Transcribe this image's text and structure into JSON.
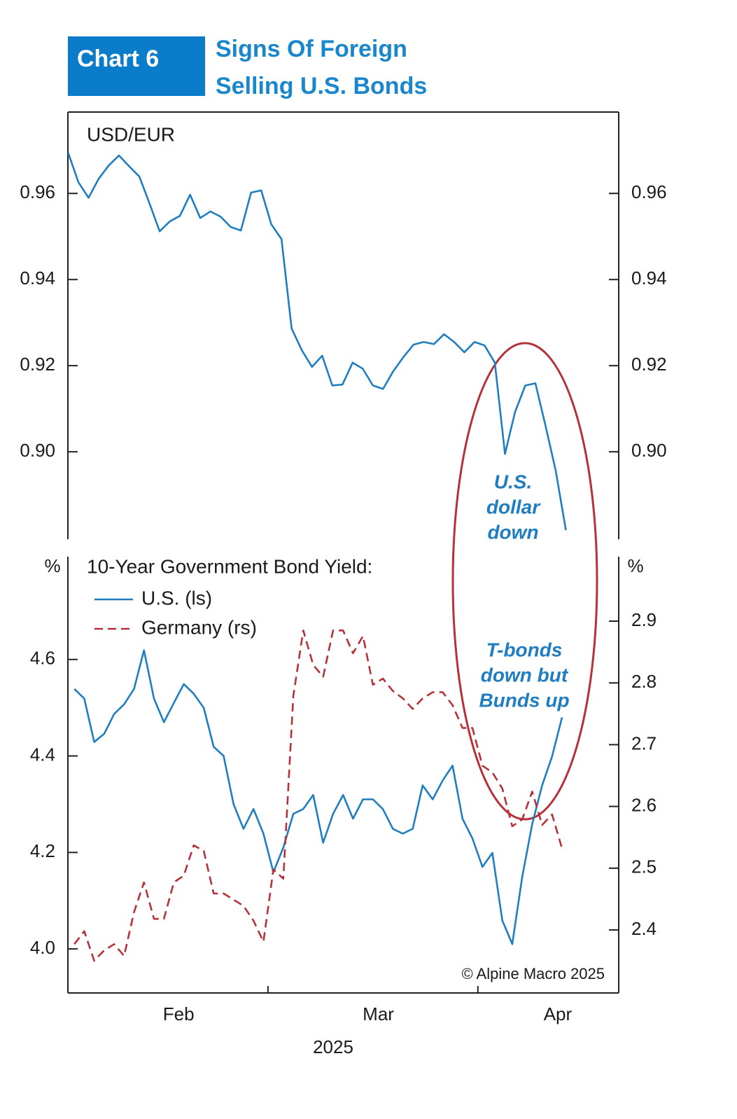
{
  "header": {
    "badge": "Chart 6",
    "title": [
      "Signs Of Foreign",
      "Selling U.S. Bonds"
    ]
  },
  "source": "© Alpine Macro 2025",
  "chart_data": [
    {
      "type": "line",
      "title": "USD/EUR",
      "color": "#1f7dc1",
      "xlim": [
        30.45,
        111.8
      ],
      "ylim": [
        0.8797,
        0.9789
      ],
      "yticks": [
        {
          "value": 0.9,
          "label": "0.90"
        },
        0.92,
        0.94,
        0.96
      ],
      "x": [
        30.5,
        32,
        33.5,
        35,
        36.5,
        38,
        39.5,
        41,
        42.5,
        44,
        45.5,
        47,
        48.5,
        50,
        51.5,
        53,
        54.5,
        56,
        57.5,
        59,
        60.5,
        62,
        63.5,
        65,
        66.5,
        68,
        69.5,
        71,
        72.5,
        74,
        75.5,
        77,
        78.5,
        80,
        81.5,
        83,
        84.5,
        86,
        87.5,
        89,
        90.5,
        92,
        93.5,
        95,
        96.5,
        98,
        99.5,
        101,
        102.5,
        104
      ],
      "values": [
        0.9694,
        0.9626,
        0.959,
        0.9634,
        0.9665,
        0.9688,
        0.9663,
        0.9639,
        0.9577,
        0.9512,
        0.9535,
        0.9548,
        0.9597,
        0.9543,
        0.9558,
        0.9546,
        0.9522,
        0.9514,
        0.9602,
        0.9607,
        0.9528,
        0.9494,
        0.9286,
        0.9236,
        0.9197,
        0.9223,
        0.9154,
        0.9156,
        0.9207,
        0.9193,
        0.9154,
        0.9146,
        0.9187,
        0.922,
        0.9249,
        0.9255,
        0.925,
        0.9273,
        0.9255,
        0.9231,
        0.9255,
        0.9247,
        0.9207,
        0.8995,
        0.9093,
        0.9154,
        0.9159,
        0.906,
        0.8956,
        0.8818
      ],
      "annotations": [
        {
          "text": [
            "U.S.",
            "dollar",
            "down"
          ]
        }
      ]
    },
    {
      "type": "line",
      "title": "10-Year Government Bond Yield:",
      "ylabel": "%",
      "y2label": "%",
      "legend": "upper left",
      "xlabel": "2025",
      "xlim": [
        30.45,
        111.8
      ],
      "ylim": [
        3.9087,
        4.8203
      ],
      "y2lim": [
        2.298,
        3.01
      ],
      "yticks": [
        {
          "value": 4,
          "label": "4.0"
        },
        4.2,
        4.4,
        4.6
      ],
      "y2ticks": [
        2.4,
        2.5,
        2.6,
        2.7,
        2.8,
        2.9
      ],
      "xticks": [
        60,
        91
      ],
      "xtick_labels": [
        {
          "value": 46.8,
          "label": "Feb"
        },
        {
          "value": 76.3,
          "label": "Mar"
        },
        {
          "value": 102.8,
          "label": "Apr"
        }
      ],
      "x": [
        31.4,
        32.87,
        34.34,
        35.81,
        37.28,
        38.75,
        40.22,
        41.69,
        43.16,
        44.63,
        46.1,
        47.57,
        49.04,
        50.51,
        51.98,
        53.45,
        54.92,
        56.39,
        57.86,
        59.33,
        60.8,
        62.27,
        63.74,
        65.21,
        66.68,
        68.15,
        69.62,
        71.09,
        72.56,
        74.03,
        75.5,
        76.97,
        78.44,
        79.91,
        81.38,
        82.85,
        84.32,
        85.79,
        87.26,
        88.73,
        90.2,
        91.67,
        93.14,
        94.61,
        96.08,
        97.55,
        99.02,
        100.49,
        101.96,
        103.43
      ],
      "series": [
        {
          "name": "U.S. (ls)",
          "color": "#1f7dc1",
          "values": [
            4.539,
            4.519,
            4.429,
            4.446,
            4.487,
            4.507,
            4.539,
            4.619,
            4.519,
            4.47,
            4.51,
            4.549,
            4.529,
            4.5,
            4.419,
            4.4,
            4.3,
            4.249,
            4.29,
            4.239,
            4.159,
            4.21,
            4.28,
            4.29,
            4.319,
            4.22,
            4.28,
            4.319,
            4.27,
            4.31,
            4.31,
            4.29,
            4.249,
            4.239,
            4.249,
            4.339,
            4.31,
            4.349,
            4.38,
            4.27,
            4.229,
            4.17,
            4.199,
            4.059,
            4.01,
            4.149,
            4.259,
            4.339,
            4.399,
            4.48
          ]
        },
        {
          "name": "Germany (rs)",
          "color": "#b5323a",
          "axis": "y2",
          "line_style": "dashed",
          "values": [
            2.377,
            2.398,
            2.35,
            2.367,
            2.377,
            2.358,
            2.429,
            2.477,
            2.418,
            2.418,
            2.477,
            2.488,
            2.537,
            2.528,
            2.459,
            2.459,
            2.449,
            2.439,
            2.415,
            2.381,
            2.498,
            2.483,
            2.779,
            2.885,
            2.829,
            2.81,
            2.885,
            2.885,
            2.848,
            2.876,
            2.797,
            2.807,
            2.787,
            2.775,
            2.758,
            2.775,
            2.785,
            2.785,
            2.764,
            2.727,
            2.727,
            2.666,
            2.655,
            2.629,
            2.568,
            2.579,
            2.624,
            2.57,
            2.587,
            2.532
          ]
        }
      ],
      "annotations": [
        {
          "text": [
            "T-bonds",
            "down but",
            "Bunds up"
          ]
        }
      ]
    }
  ]
}
